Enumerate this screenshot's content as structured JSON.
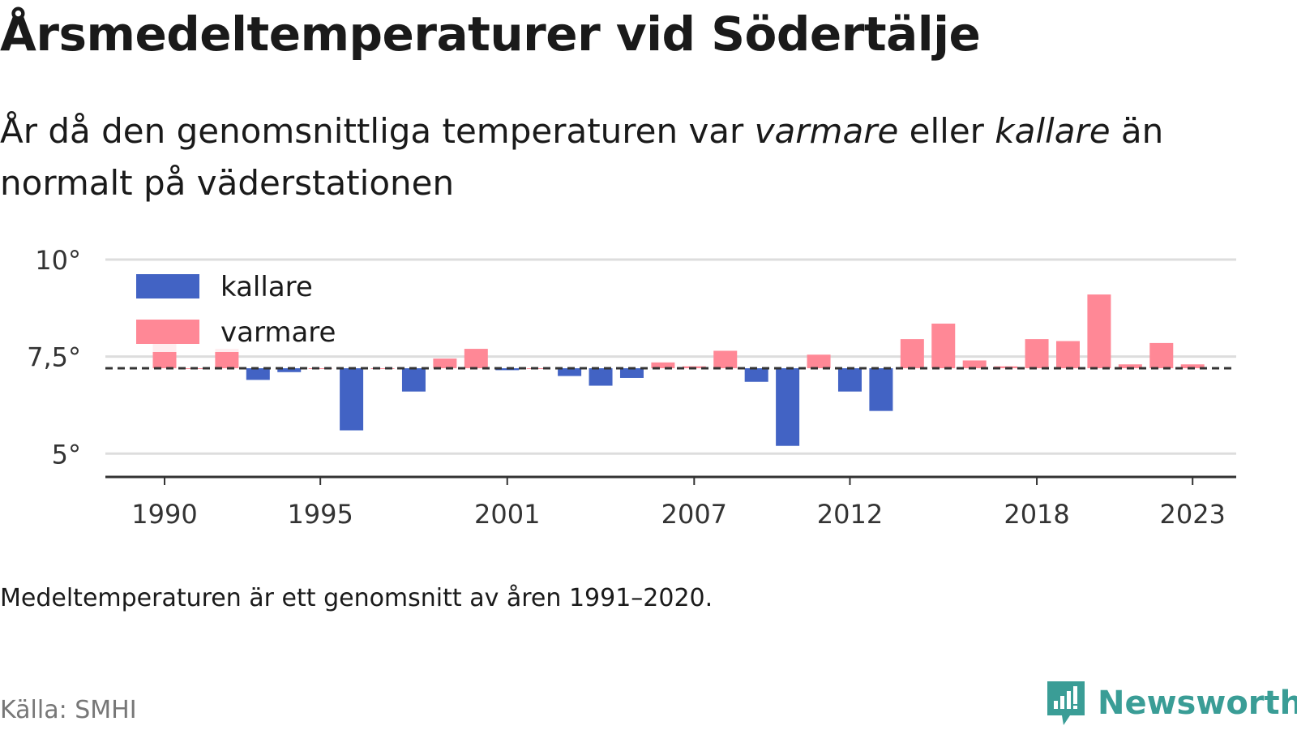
{
  "header": {
    "title": "Årsmedeltemperaturer vid Södertälje",
    "subtitle_parts": [
      "År då den genomsnittliga temperaturen var ",
      "varmare",
      " eller ",
      "kallare",
      " än normalt på väderstationen"
    ]
  },
  "footer": {
    "note": "Medeltemperaturen är ett genomsnitt av åren 1991–2020.",
    "source": "Källa: SMHI",
    "brand": "Newsworthy"
  },
  "colors": {
    "colder": "#4263c4",
    "warmer": "#ff8896",
    "reference": "#333333",
    "grid": "#dddddd",
    "brand": "#3a9d96"
  },
  "chart_data": {
    "type": "bar",
    "baseline": 7.2,
    "ylim": [
      4.4,
      10
    ],
    "y_ticks": [
      5,
      7.5,
      10
    ],
    "y_tick_labels": [
      "5°",
      "7,5°",
      "10°"
    ],
    "x_ticks": [
      1990,
      1995,
      2001,
      2007,
      2012,
      2018,
      2023
    ],
    "x_tick_labels": [
      "1990",
      "1995",
      "2001",
      "2007",
      "2012",
      "2018",
      "2023"
    ],
    "legend": {
      "position": "top-left",
      "entries": [
        {
          "key": "colder",
          "label": "kallare"
        },
        {
          "key": "warmer",
          "label": "varmare"
        }
      ]
    },
    "x": [
      1990,
      1991,
      1992,
      1993,
      1994,
      1995,
      1996,
      1997,
      1998,
      1999,
      2000,
      2001,
      2002,
      2003,
      2004,
      2005,
      2006,
      2007,
      2008,
      2009,
      2010,
      2011,
      2012,
      2013,
      2014,
      2015,
      2016,
      2017,
      2018,
      2019,
      2020,
      2021,
      2022,
      2023
    ],
    "values": [
      7.9,
      7.2,
      7.7,
      6.9,
      7.1,
      7.2,
      5.6,
      7.2,
      6.6,
      7.45,
      7.7,
      7.15,
      7.2,
      7.0,
      6.75,
      6.95,
      7.35,
      7.25,
      7.65,
      6.85,
      5.2,
      7.55,
      6.6,
      6.1,
      7.95,
      8.35,
      7.4,
      7.25,
      7.95,
      7.9,
      9.1,
      7.3,
      7.85,
      7.3
    ]
  }
}
